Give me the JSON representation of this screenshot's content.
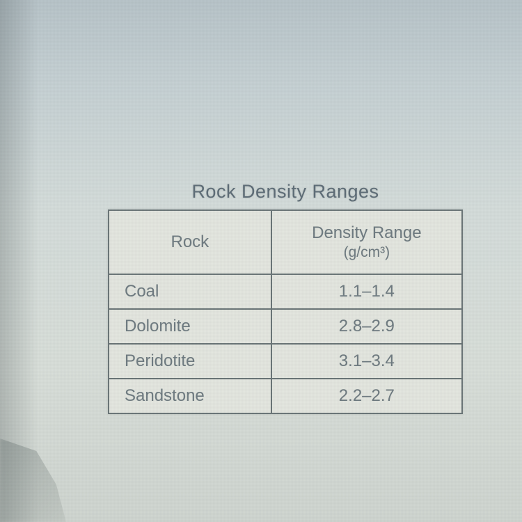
{
  "table": {
    "caption": "Rock Density Ranges",
    "columns": {
      "rock": "Rock",
      "density_label": "Density Range",
      "density_unit": "(g/cm³)"
    },
    "rows": [
      {
        "rock": "Coal",
        "range": "1.1–1.4"
      },
      {
        "rock": "Dolomite",
        "range": "2.8–2.9"
      },
      {
        "rock": "Peridotite",
        "range": "3.1–3.4"
      },
      {
        "rock": "Sandstone",
        "range": "2.2–2.7"
      }
    ],
    "style": {
      "caption_color": "#5f6e78",
      "caption_fontsize": 27,
      "cell_text_color": "#707c82",
      "cell_fontsize": 24,
      "border_color": "#6b7678",
      "border_width": 2,
      "table_bg": "#e3e6df",
      "page_bg_top": "#b8c4c9",
      "page_bg_bottom": "#cfd5d0",
      "col_widths_pct": [
        46,
        54
      ]
    }
  }
}
